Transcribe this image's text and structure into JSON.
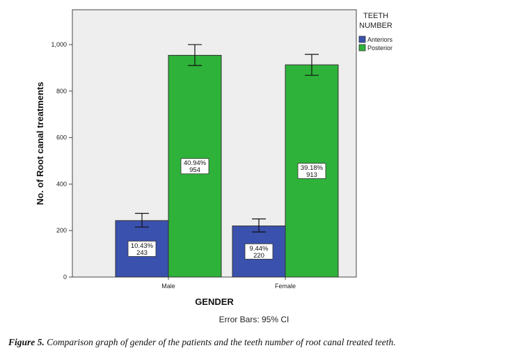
{
  "chart_data": {
    "type": "bar",
    "categories": [
      "Male",
      "Female"
    ],
    "series": [
      {
        "name": "Anteriors",
        "color": "#3a51ad",
        "values": [
          243,
          220
        ],
        "ci_low": [
          215,
          194
        ],
        "ci_high": [
          274,
          250
        ],
        "labels": [
          {
            "percent": "10.43%",
            "count": "243"
          },
          {
            "percent": "9.44%",
            "count": "220"
          }
        ]
      },
      {
        "name": "Posterior",
        "color": "#2eb23a",
        "values": [
          954,
          913
        ],
        "ci_low": [
          910,
          868
        ],
        "ci_high": [
          1000,
          958
        ],
        "labels": [
          {
            "percent": "40.94%",
            "count": "954"
          },
          {
            "percent": "39.18%",
            "count": "913"
          }
        ]
      }
    ],
    "xlabel": "GENDER",
    "ylabel": "No. of Root canal treatments",
    "ylim": [
      0,
      1150
    ],
    "yticks": [
      0,
      200,
      400,
      600,
      800,
      1000
    ],
    "ytick_labels": [
      "0",
      "200",
      "400",
      "600",
      "800",
      "1,000"
    ],
    "legend_title_lines": [
      "TEETH",
      "NUMBER"
    ],
    "legend_position": "right",
    "plot_background": "#eeeeee",
    "error_bar_note": "Error Bars: 95% CI"
  },
  "caption": {
    "label": "Figure 5.",
    "text": " Comparison graph of gender of the patients and the teeth number of root canal treated teeth."
  }
}
